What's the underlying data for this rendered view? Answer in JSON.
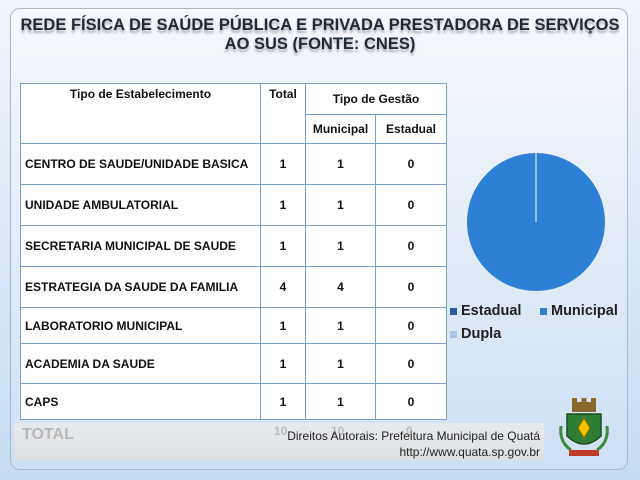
{
  "title_line1": "REDE FÍSICA DE SAÚDE PÚBLICA E PRIVADA PRESTADORA DE SERVIÇOS",
  "title_line2": "AO SUS (FONTE: CNES)",
  "table": {
    "header_tipo": "Tipo de Estabelecimento",
    "header_total": "Total",
    "header_gestao": "Tipo de Gestão",
    "header_municipal": "Municipal",
    "header_estadual": "Estadual",
    "rows": [
      {
        "tipo": "CENTRO DE SAUDE/UNIDADE BASICA",
        "total": "1",
        "municipal": "1",
        "estadual": "0"
      },
      {
        "tipo": "UNIDADE AMBULATORIAL",
        "total": "1",
        "municipal": "1",
        "estadual": "0"
      },
      {
        "tipo": "SECRETARIA MUNICIPAL DE SAUDE",
        "total": "1",
        "municipal": "1",
        "estadual": "0"
      },
      {
        "tipo": "ESTRATEGIA DA SAUDE DA FAMILIA",
        "total": "4",
        "municipal": "4",
        "estadual": "0"
      },
      {
        "tipo": "LABORATORIO MUNICIPAL",
        "total": "1",
        "municipal": "1",
        "estadual": "0"
      },
      {
        "tipo": "ACADEMIA DA SAUDE",
        "total": "1",
        "municipal": "1",
        "estadual": "0"
      },
      {
        "tipo": "CAPS",
        "total": "1",
        "municipal": "1",
        "estadual": "0"
      }
    ],
    "total_label": "TOTAL",
    "total_values": [
      "10",
      "10",
      "0"
    ]
  },
  "credits_line1": "Direitos Autorais: Prefeitura Municipal de Quatá",
  "credits_line2": "http://www.quata.sp.gov.br",
  "chart_data": {
    "type": "pie",
    "categories": [
      "Estadual",
      "Municipal",
      "Dupla"
    ],
    "values": [
      0,
      10,
      0
    ],
    "colors": [
      "#2a5fa0",
      "#2e7fd6",
      "#a9c4e6"
    ],
    "legend_position": "bottom"
  }
}
